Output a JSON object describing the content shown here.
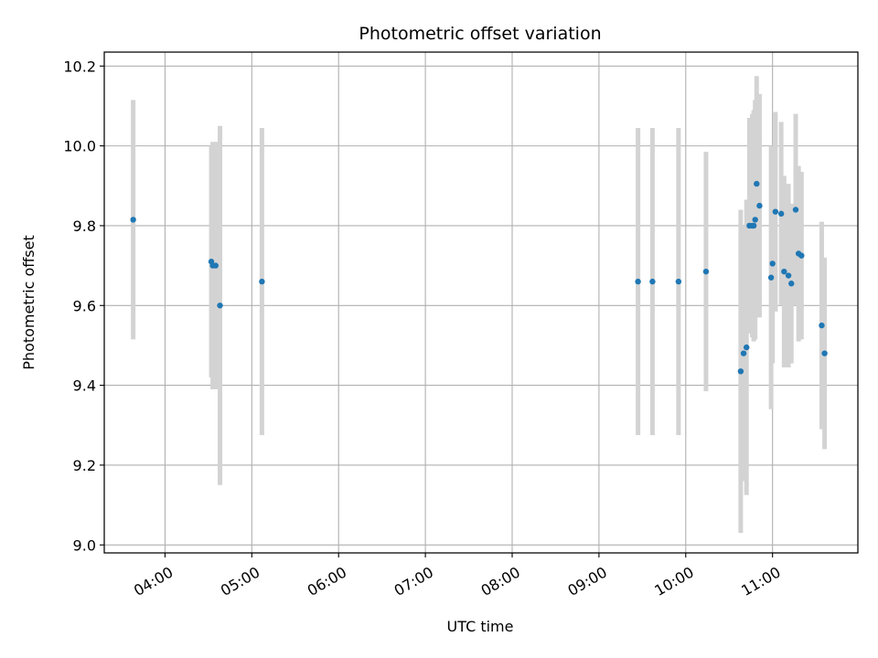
{
  "chart_data": {
    "type": "scatter",
    "title": "Photometric offset variation",
    "xlabel": "UTC time",
    "ylabel": "Photometric offset",
    "x_tick_labels": [
      "04:00",
      "05:00",
      "06:00",
      "07:00",
      "08:00",
      "09:00",
      "10:00",
      "11:00"
    ],
    "x_ticks": [
      "04:00",
      "05:00",
      "06:00",
      "07:00",
      "08:00",
      "09:00",
      "10:00",
      "11:00"
    ],
    "y_ticks": [
      9.0,
      9.2,
      9.4,
      9.6,
      9.8,
      10.0,
      10.2
    ],
    "y_tick_labels": [
      "9.0",
      "9.2",
      "9.4",
      "9.6",
      "9.8",
      "10.0",
      "10.2"
    ],
    "xlim": [
      "03:18",
      "11:59"
    ],
    "ylim": [
      8.98,
      10.235
    ],
    "grid": true,
    "colors": {
      "point": "#1f77b4",
      "errorbar": "#d3d3d3",
      "grid": "#b0b0b0"
    },
    "points": [
      {
        "x": "03:38",
        "y": 9.815,
        "yerr": 0.3
      },
      {
        "x": "04:32",
        "y": 9.71,
        "yerr": 0.29
      },
      {
        "x": "04:33",
        "y": 9.7,
        "yerr": 0.31
      },
      {
        "x": "04:35",
        "y": 9.7,
        "yerr": 0.31
      },
      {
        "x": "04:38",
        "y": 9.6,
        "yerr": 0.45
      },
      {
        "x": "05:07",
        "y": 9.66,
        "yerr": 0.385
      },
      {
        "x": "09:27",
        "y": 9.66,
        "yerr": 0.385
      },
      {
        "x": "09:37",
        "y": 9.66,
        "yerr": 0.385
      },
      {
        "x": "09:55",
        "y": 9.66,
        "yerr": 0.385
      },
      {
        "x": "10:14",
        "y": 9.685,
        "yerr": 0.3
      },
      {
        "x": "10:38",
        "y": 9.435,
        "yerr": 0.405
      },
      {
        "x": "10:40",
        "y": 9.48,
        "yerr": 0.32
      },
      {
        "x": "10:42",
        "y": 9.495,
        "yerr": 0.37
      },
      {
        "x": "10:44",
        "y": 9.8,
        "yerr": 0.27
      },
      {
        "x": "10:46",
        "y": 9.8,
        "yerr": 0.28
      },
      {
        "x": "10:47",
        "y": 9.8,
        "yerr": 0.29
      },
      {
        "x": "10:48",
        "y": 9.815,
        "yerr": 0.3
      },
      {
        "x": "10:49",
        "y": 9.905,
        "yerr": 0.27
      },
      {
        "x": "10:51",
        "y": 9.85,
        "yerr": 0.28
      },
      {
        "x": "10:59",
        "y": 9.67,
        "yerr": 0.33
      },
      {
        "x": "11:00",
        "y": 9.705,
        "yerr": 0.25
      },
      {
        "x": "11:02",
        "y": 9.835,
        "yerr": 0.25
      },
      {
        "x": "11:06",
        "y": 9.83,
        "yerr": 0.23
      },
      {
        "x": "11:08",
        "y": 9.685,
        "yerr": 0.24
      },
      {
        "x": "11:11",
        "y": 9.675,
        "yerr": 0.23
      },
      {
        "x": "11:13",
        "y": 9.655,
        "yerr": 0.2
      },
      {
        "x": "11:16",
        "y": 9.84,
        "yerr": 0.24
      },
      {
        "x": "11:18",
        "y": 9.73,
        "yerr": 0.22
      },
      {
        "x": "11:20",
        "y": 9.725,
        "yerr": 0.21
      },
      {
        "x": "11:34",
        "y": 9.55,
        "yerr": 0.26
      },
      {
        "x": "11:36",
        "y": 9.48,
        "yerr": 0.24
      }
    ]
  }
}
